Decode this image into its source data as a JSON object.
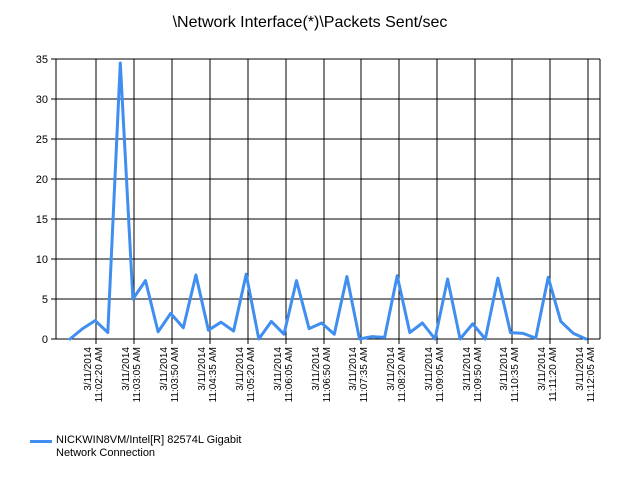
{
  "chart_data": {
    "type": "line",
    "title": "\\Network Interface(*)\\Packets Sent/sec",
    "xlabel": "",
    "ylabel": "",
    "ylim": [
      0,
      35
    ],
    "yticks": [
      0,
      5,
      10,
      15,
      20,
      25,
      30,
      35
    ],
    "grid": true,
    "legend_position": "bottom-left",
    "x_tick_labels": [
      [
        "3/11/2014",
        "11:02:20 AM"
      ],
      [
        "3/11/2014",
        "11:03:05 AM"
      ],
      [
        "3/11/2014",
        "11:03:50 AM"
      ],
      [
        "3/11/2014",
        "11:04:35 AM"
      ],
      [
        "3/11/2014",
        "11:05:20 AM"
      ],
      [
        "3/11/2014",
        "11:06:05 AM"
      ],
      [
        "3/11/2014",
        "11:06:50 AM"
      ],
      [
        "3/11/2014",
        "11:07:35 AM"
      ],
      [
        "3/11/2014",
        "11:08:20 AM"
      ],
      [
        "3/11/2014",
        "11:09:05 AM"
      ],
      [
        "3/11/2014",
        "11:09:50 AM"
      ],
      [
        "3/11/2014",
        "11:10:35 AM"
      ],
      [
        "3/11/2014",
        "11:11:20 AM"
      ],
      [
        "3/11/2014",
        "11:12:05 AM"
      ]
    ],
    "series": [
      {
        "name": "NICKWIN8VM/Intel[R] 82574L Gigabit Network Connection",
        "color": "#3f8ef0",
        "values": [
          0,
          1.3,
          2.3,
          0.8,
          34.5,
          5,
          7.3,
          0.9,
          3.2,
          1.4,
          8,
          1.1,
          2.1,
          1,
          8.1,
          0,
          2.2,
          0.6,
          7.3,
          1.3,
          2,
          0.6,
          7.8,
          0,
          0.3,
          0.2,
          7.9,
          0.8,
          2,
          0,
          7.5,
          0,
          1.9,
          0,
          7.6,
          0.8,
          0.7,
          0.1,
          7.7,
          2.2,
          0.7,
          0
        ]
      }
    ]
  }
}
